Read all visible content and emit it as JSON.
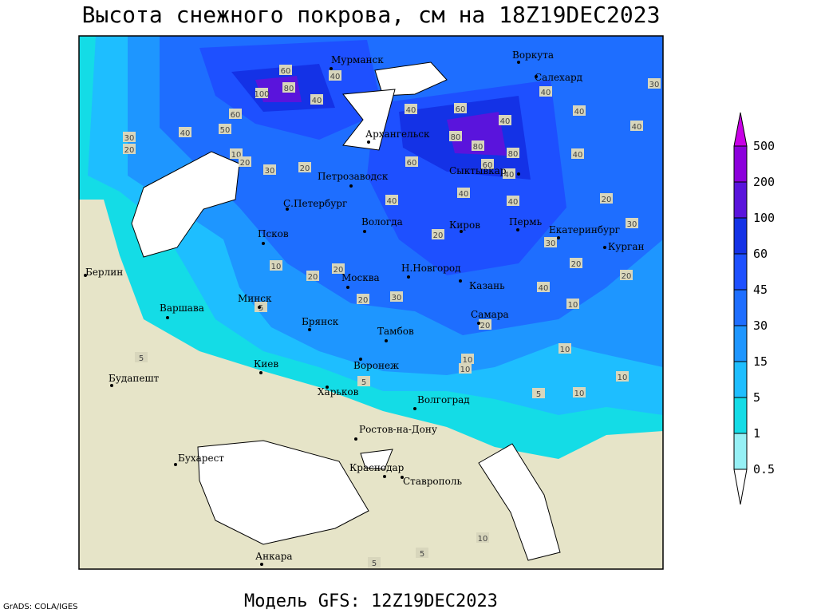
{
  "title": "Высота снежного покрова, см на 18Z19DEC2023",
  "model": "Модель GFS: 12Z19DEC2023",
  "credit": "GrADS: COLA/IGES",
  "legend": {
    "levels": [
      0.5,
      1,
      5,
      15,
      30,
      45,
      60,
      100,
      200,
      500
    ],
    "colors": [
      "#ffffff",
      "#96f0f5",
      "#14dce6",
      "#1ebeff",
      "#1e96ff",
      "#1e6eff",
      "#1e50ff",
      "#1432e6",
      "#5a14dc",
      "#8c00dc",
      "#c800e6"
    ]
  },
  "cities": [
    "Мурманск",
    "Воркута",
    "Салехард",
    "Архангельск",
    "Сыктывкар",
    "Петрозаводск",
    "С.Петербург",
    "Вологда",
    "Киров",
    "Пермь",
    "Екатеринбург",
    "Курган",
    "Псков",
    "Берлин",
    "Н.Новгород",
    "Москва",
    "Казань",
    "Минск",
    "Варшава",
    "Самара",
    "Брянск",
    "Тамбов",
    "Киев",
    "Воронеж",
    "Будапешт",
    "Харьков",
    "Волгоград",
    "Ростов-на-Дону",
    "Бухарест",
    "Краснодар",
    "Ставрополь",
    "Анкара"
  ],
  "contour_labels": [
    60,
    80,
    100,
    40,
    40,
    60,
    50,
    40,
    20,
    30,
    10,
    20,
    30,
    20,
    40,
    60,
    80,
    80,
    60,
    80,
    60,
    40,
    40,
    40,
    40,
    30,
    40,
    40,
    40,
    40,
    40,
    20,
    30,
    30,
    20,
    20,
    10,
    20,
    20,
    30,
    20,
    40,
    20,
    20,
    10,
    10,
    10,
    5,
    10,
    10,
    5,
    10,
    5,
    5,
    5,
    10,
    5
  ]
}
